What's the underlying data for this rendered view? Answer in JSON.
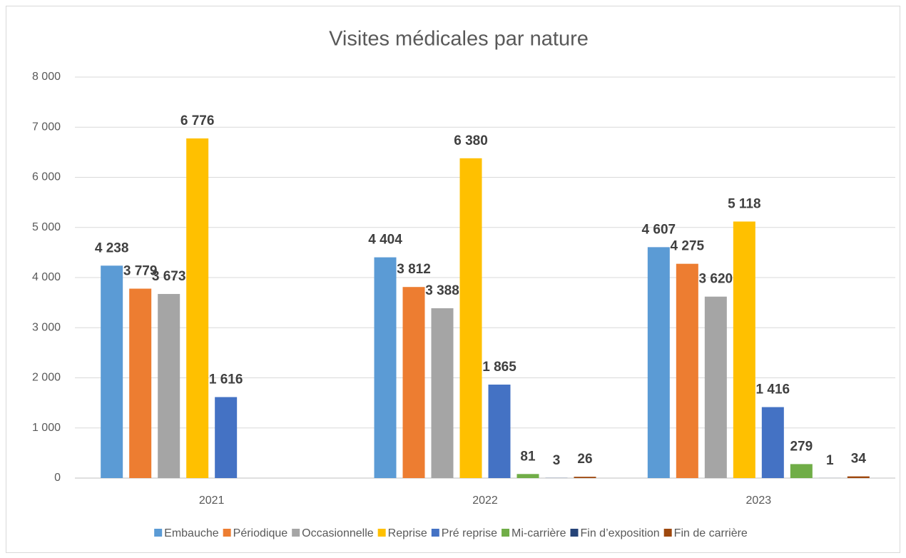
{
  "chart_data": {
    "type": "bar",
    "title": "Visites médicales par nature",
    "categories": [
      "2021",
      "2022",
      "2023"
    ],
    "series": [
      {
        "name": "Embauche",
        "color": "#5b9bd5",
        "values": [
          4238,
          4404,
          4607
        ],
        "value_labels": [
          "4 238",
          "4 404",
          "4 607"
        ]
      },
      {
        "name": "Périodique",
        "color": "#ed7d31",
        "values": [
          3779,
          3812,
          4275
        ],
        "value_labels": [
          "3 779",
          "3 812",
          "4 275"
        ]
      },
      {
        "name": "Occasionnelle",
        "color": "#a5a5a5",
        "values": [
          3673,
          3388,
          3620
        ],
        "value_labels": [
          "3 673",
          "3 388",
          "3 620"
        ]
      },
      {
        "name": "Reprise",
        "color": "#ffc000",
        "values": [
          6776,
          6380,
          5118
        ],
        "value_labels": [
          "6 776",
          "6 380",
          "5 118"
        ]
      },
      {
        "name": "Pré reprise",
        "color": "#4472c4",
        "values": [
          1616,
          1865,
          1416
        ],
        "value_labels": [
          "1 616",
          "1 865",
          "1 416"
        ]
      },
      {
        "name": "Mi-carrière",
        "color": "#70ad47",
        "values": [
          null,
          81,
          279
        ]
      },
      {
        "name": "Fin d’exposition",
        "color": "#264478",
        "values": [
          null,
          3,
          1
        ]
      },
      {
        "name": "Fin de carrière",
        "color": "#9e480e",
        "values": [
          null,
          26,
          34
        ]
      }
    ],
    "ylim": [
      0,
      8000
    ],
    "yticks": [
      0,
      {
        "value": 1000,
        "label": "1 000"
      },
      {
        "value": 2000,
        "label": "2 000"
      },
      {
        "value": 3000,
        "label": "3 000"
      },
      {
        "value": 4000,
        "label": "4 000"
      },
      {
        "value": 5000,
        "label": "5 000"
      },
      {
        "value": 6000,
        "label": "6 000"
      },
      {
        "value": 7000,
        "label": "7 000"
      },
      {
        "value": 8000,
        "label": "8 000"
      }
    ],
    "grid": true,
    "legend": "bottom"
  }
}
